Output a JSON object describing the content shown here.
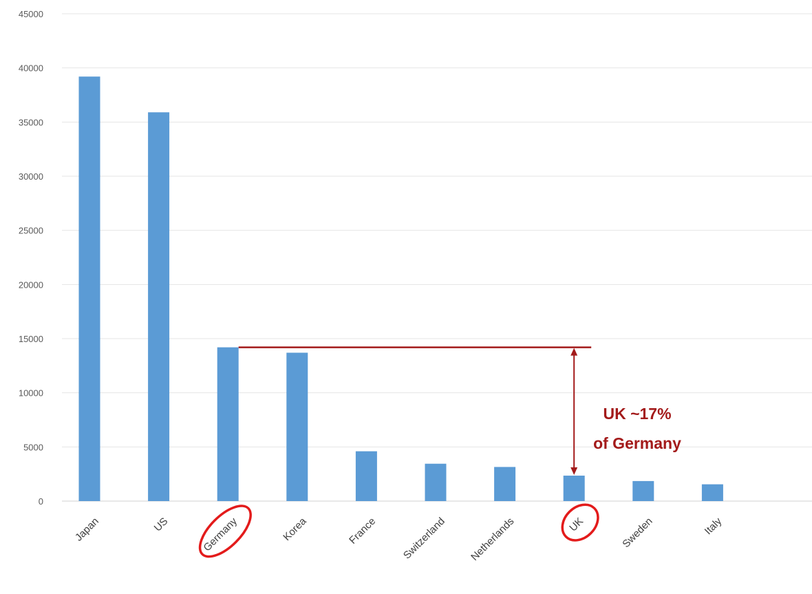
{
  "chart_data": {
    "type": "bar",
    "categories": [
      "Japan",
      "US",
      "Germany",
      "Korea",
      "France",
      "Switzerland",
      "Netherlands",
      "UK",
      "Sweden",
      "Italy"
    ],
    "values": [
      39200,
      35900,
      14200,
      13700,
      4600,
      3450,
      3150,
      2350,
      1850,
      1550
    ],
    "title": "",
    "xlabel": "",
    "ylabel": "",
    "ylim": [
      0,
      45000
    ],
    "yticks": [
      0,
      5000,
      10000,
      15000,
      20000,
      25000,
      30000,
      35000,
      40000,
      45000
    ],
    "grid": true,
    "legend": "none",
    "bar_color": "#5b9bd5",
    "highlighted_categories": [
      "Germany",
      "UK"
    ],
    "annotation": {
      "lines": [
        "UK ~17%",
        "of Germany"
      ],
      "color": "#a31a1a",
      "reference_category": "Germany",
      "compared_category": "UK"
    }
  }
}
